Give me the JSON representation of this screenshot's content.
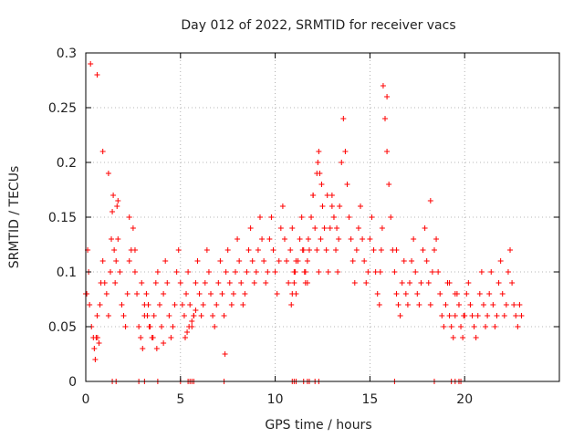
{
  "chart_data": {
    "type": "scatter",
    "title": "Day 012 of 2022, SRMTID for receiver vacs",
    "xlabel": "GPS time / hours",
    "ylabel": "SRMTID / TECUs",
    "xlim": [
      0,
      25
    ],
    "ylim": [
      0,
      0.3
    ],
    "xticks": [
      0,
      5,
      10,
      15,
      20
    ],
    "xtick_labels": [
      "0",
      "5",
      "10",
      "15",
      "20"
    ],
    "yticks": [
      0,
      0.05,
      0.1,
      0.15,
      0.2,
      0.25,
      0.3
    ],
    "ytick_labels": [
      "0",
      "0.05",
      "0.1",
      "0.15",
      "0.2",
      "0.25",
      "0.3"
    ],
    "grid": true,
    "marker": "+",
    "series": [
      {
        "name": "SRMTID",
        "color": "#ff0000",
        "x": [
          0.0,
          0.1,
          0.15,
          0.2,
          0.3,
          0.4,
          0.45,
          0.5,
          0.55,
          0.6,
          0.62,
          0.7,
          0.75,
          0.8,
          0.9,
          1.0,
          1.1,
          1.2,
          1.3,
          1.35,
          1.4,
          1.5,
          1.55,
          1.6,
          1.65,
          1.7,
          1.8,
          1.9,
          2.0,
          2.1,
          2.2,
          2.3,
          2.4,
          2.5,
          2.6,
          2.7,
          2.8,
          2.9,
          3.0,
          3.1,
          3.2,
          3.3,
          3.4,
          3.5,
          3.6,
          3.7,
          3.8,
          3.9,
          4.0,
          4.1,
          4.2,
          4.3,
          4.4,
          4.5,
          4.6,
          4.7,
          4.8,
          4.9,
          5.0,
          5.1,
          5.2,
          5.3,
          5.4,
          5.5,
          5.6,
          5.7,
          5.8,
          5.9,
          6.0,
          6.1,
          6.2,
          6.3,
          6.4,
          6.5,
          6.6,
          6.7,
          6.8,
          6.9,
          7.0,
          7.1,
          7.2,
          7.3,
          7.4,
          7.5,
          7.6,
          7.7,
          7.8,
          7.9,
          8.0,
          8.1,
          8.2,
          8.3,
          8.4,
          8.5,
          8.6,
          8.7,
          8.8,
          8.9,
          9.0,
          9.1,
          9.2,
          9.3,
          9.4,
          9.5,
          9.6,
          9.7,
          9.8,
          9.9,
          10.0,
          10.1,
          10.2,
          10.3,
          10.4,
          10.5,
          10.6,
          10.7,
          10.8,
          10.9,
          11.0,
          11.1,
          11.2,
          11.3,
          11.4,
          11.5,
          11.6,
          11.7,
          11.8,
          11.9,
          12.0,
          12.1,
          12.2,
          12.3,
          12.4,
          12.5,
          12.6,
          12.7,
          12.8,
          12.9,
          13.0,
          13.1,
          13.2,
          13.3,
          13.35,
          13.4,
          13.5,
          13.6,
          13.7,
          13.8,
          13.9,
          14.0,
          14.1,
          14.2,
          14.3,
          14.4,
          14.5,
          14.6,
          14.7,
          14.8,
          14.9,
          15.0,
          15.1,
          15.2,
          15.3,
          15.4,
          15.5,
          15.55,
          15.6,
          15.65,
          15.7,
          15.8,
          15.9,
          16.0,
          16.1,
          16.2,
          16.3,
          16.4,
          16.5,
          16.6,
          16.7,
          16.8,
          16.9,
          17.0,
          17.1,
          17.2,
          17.3,
          17.4,
          17.5,
          17.6,
          17.7,
          17.8,
          17.9,
          18.0,
          18.1,
          18.2,
          18.3,
          18.4,
          18.5,
          18.6,
          18.7,
          18.8,
          18.9,
          19.0,
          19.1,
          19.2,
          19.3,
          19.4,
          19.5,
          19.6,
          19.7,
          19.8,
          19.9,
          20.0,
          20.1,
          20.2,
          20.3,
          20.4,
          20.5,
          20.6,
          20.7,
          20.8,
          20.9,
          21.0,
          21.1,
          21.2,
          21.3,
          21.4,
          21.5,
          21.6,
          21.7,
          21.8,
          21.9,
          22.0,
          22.1,
          22.2,
          22.3,
          22.4,
          22.5,
          22.6,
          22.7,
          22.8,
          22.9,
          23.0,
          0.05,
          0.25,
          0.6,
          0.9,
          1.2,
          1.45,
          1.7,
          2.3,
          2.6,
          2.95,
          3.1,
          3.25,
          3.35,
          3.55,
          3.75,
          4.1,
          5.25,
          5.35,
          5.45,
          5.6,
          5.7,
          5.8,
          7.35,
          10.85,
          10.9,
          11.0,
          11.05,
          11.1,
          11.45,
          11.55,
          11.6,
          11.7,
          11.75,
          11.9,
          12.0,
          12.2,
          12.25,
          12.3,
          12.35,
          12.45,
          12.75,
          13.0,
          13.1,
          13.25,
          15.9,
          16.4,
          18.2,
          19.2,
          19.5,
          19.7,
          19.95
        ],
        "y": [
          0.08,
          0.12,
          0.1,
          0.07,
          0.05,
          0.04,
          0.03,
          0.02,
          0.04,
          0.06,
          0.04,
          0.035,
          0.07,
          0.09,
          0.11,
          0.09,
          0.08,
          0.06,
          0.1,
          0.13,
          0.155,
          0.12,
          0.09,
          0.11,
          0.16,
          0.13,
          0.1,
          0.07,
          0.06,
          0.05,
          0.08,
          0.11,
          0.12,
          0.14,
          0.1,
          0.08,
          0.05,
          0.04,
          0.03,
          0.06,
          0.08,
          0.07,
          0.05,
          0.04,
          0.06,
          0.09,
          0.1,
          0.07,
          0.05,
          0.08,
          0.11,
          0.09,
          0.06,
          0.04,
          0.05,
          0.07,
          0.1,
          0.12,
          0.09,
          0.07,
          0.06,
          0.08,
          0.1,
          0.07,
          0.05,
          0.06,
          0.09,
          0.11,
          0.08,
          0.06,
          0.07,
          0.09,
          0.12,
          0.1,
          0.08,
          0.06,
          0.05,
          0.07,
          0.09,
          0.11,
          0.08,
          0.06,
          0.1,
          0.12,
          0.09,
          0.07,
          0.08,
          0.1,
          0.13,
          0.11,
          0.09,
          0.07,
          0.08,
          0.1,
          0.12,
          0.14,
          0.11,
          0.09,
          0.1,
          0.12,
          0.15,
          0.13,
          0.11,
          0.09,
          0.1,
          0.13,
          0.15,
          0.12,
          0.1,
          0.08,
          0.11,
          0.14,
          0.16,
          0.13,
          0.11,
          0.09,
          0.12,
          0.14,
          0.1,
          0.08,
          0.11,
          0.13,
          0.15,
          0.12,
          0.1,
          0.09,
          0.12,
          0.15,
          0.17,
          0.14,
          0.12,
          0.1,
          0.13,
          0.16,
          0.14,
          0.12,
          0.1,
          0.14,
          0.17,
          0.15,
          0.12,
          0.1,
          0.13,
          0.16,
          0.2,
          0.24,
          0.21,
          0.18,
          0.15,
          0.13,
          0.11,
          0.09,
          0.12,
          0.14,
          0.16,
          0.13,
          0.11,
          0.09,
          0.1,
          0.13,
          0.15,
          0.12,
          0.1,
          0.08,
          0.07,
          0.1,
          0.12,
          0.14,
          0.27,
          0.24,
          0.21,
          0.18,
          0.15,
          0.12,
          0.1,
          0.08,
          0.07,
          0.06,
          0.09,
          0.11,
          0.08,
          0.07,
          0.09,
          0.11,
          0.13,
          0.1,
          0.08,
          0.07,
          0.09,
          0.12,
          0.14,
          0.11,
          0.09,
          0.07,
          0.1,
          0.12,
          0.13,
          0.1,
          0.08,
          0.06,
          0.05,
          0.07,
          0.09,
          0.06,
          0.05,
          0.04,
          0.06,
          0.08,
          0.07,
          0.05,
          0.04,
          0.06,
          0.08,
          0.09,
          0.07,
          0.06,
          0.05,
          0.04,
          0.06,
          0.08,
          0.1,
          0.07,
          0.05,
          0.06,
          0.08,
          0.1,
          0.07,
          0.05,
          0.06,
          0.09,
          0.11,
          0.08,
          0.06,
          0.07,
          0.1,
          0.12,
          0.09,
          0.07,
          0.06,
          0.05,
          0.07,
          0.06,
          0.08,
          0.29,
          0.28,
          0.21,
          0.19,
          0.17,
          0.165,
          0.15,
          0.12,
          0.09,
          0.07,
          0.06,
          0.05,
          0.04,
          0.03,
          0.035,
          0.04,
          0.045,
          0.05,
          0.055,
          0.06,
          0.065,
          0.025,
          0.07,
          0.08,
          0.09,
          0.1,
          0.11,
          0.12,
          0.1,
          0.09,
          0.11,
          0.13,
          0.15,
          0.17,
          0.19,
          0.2,
          0.21,
          0.19,
          0.18,
          0.17,
          0.16,
          0.15,
          0.14,
          0.26,
          0.12,
          0.165,
          0.09,
          0.08,
          0.07,
          0.06
        ]
      }
    ],
    "zero_markers_x": [
      1.4,
      1.6,
      2.8,
      3.1,
      3.8,
      5.0,
      5.4,
      5.5,
      5.6,
      5.7,
      7.3,
      10.9,
      11.0,
      11.1,
      11.5,
      11.7,
      11.8,
      12.1,
      12.3,
      16.3,
      18.4,
      19.3,
      19.5,
      19.7,
      19.8
    ]
  }
}
